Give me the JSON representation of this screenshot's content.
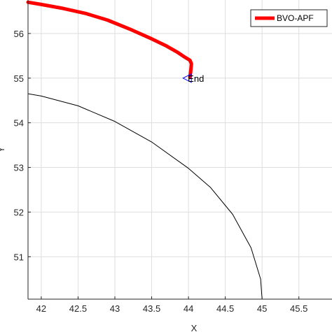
{
  "chart_data": {
    "type": "line",
    "xlabel": "X",
    "ylabel": "Y",
    "xlim": [
      41.82,
      45.95
    ],
    "ylim": [
      50.05,
      56.75
    ],
    "xticks": [
      42,
      42.5,
      43,
      43.5,
      44,
      44.5,
      45,
      45.5
    ],
    "xtick_labels": [
      "42",
      "42.5",
      "43",
      "43.5",
      "44",
      "44.5",
      "45",
      "45.5"
    ],
    "yticks": [
      51,
      52,
      53,
      54,
      55,
      56
    ],
    "ytick_labels": [
      "51",
      "52",
      "53",
      "54",
      "55",
      "56"
    ],
    "grid": true,
    "legend_position": "top-right",
    "series": [
      {
        "name": "BVO-APF",
        "color": "#ff0000",
        "x": [
          41.82,
          42.0,
          42.3,
          42.6,
          42.9,
          43.2,
          43.5,
          43.7,
          43.85,
          43.95,
          44.02,
          44.04,
          44.03,
          44.02
        ],
        "y": [
          56.7,
          56.65,
          56.56,
          56.45,
          56.3,
          56.1,
          55.88,
          55.72,
          55.58,
          55.47,
          55.4,
          55.32,
          55.15,
          55.02
        ]
      },
      {
        "color": "#000000",
        "x": [
          41.82,
          42.0,
          42.5,
          43.0,
          43.5,
          44.0,
          44.3,
          44.6,
          44.85,
          44.98,
          45.0
        ],
        "y": [
          54.65,
          54.6,
          54.38,
          54.03,
          53.57,
          52.98,
          52.55,
          51.95,
          51.2,
          50.5,
          50.05
        ]
      }
    ],
    "annotations": [
      {
        "text": "End",
        "x": 44.02,
        "y": 55.0,
        "marker": "triangle-left",
        "marker_color": "#0000ff"
      }
    ]
  }
}
